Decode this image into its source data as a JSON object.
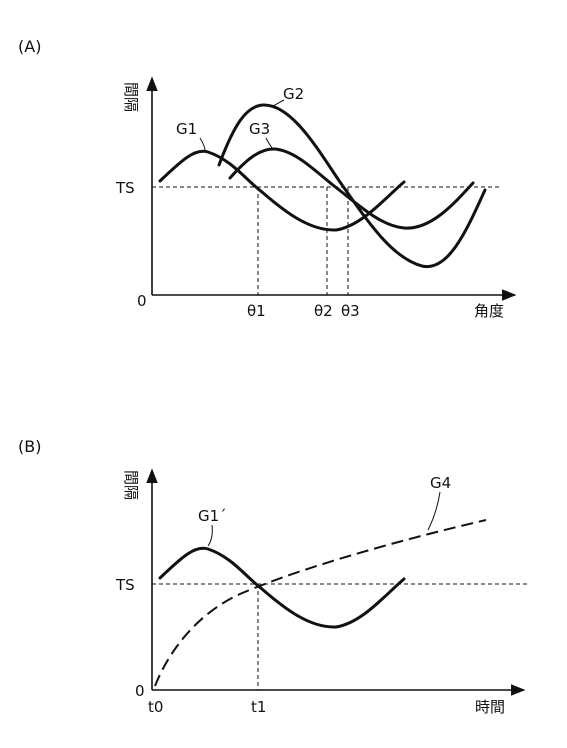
{
  "panel_a": {
    "label": "(A)",
    "y_axis_label": "間隔",
    "x_axis_label": "角度",
    "origin_label": "0",
    "threshold_label": "TS",
    "x_ticks": [
      "θ1",
      "θ2",
      "θ3"
    ],
    "curves": [
      "G1",
      "G2",
      "G3"
    ]
  },
  "panel_b": {
    "label": "(B)",
    "y_axis_label": "間隔",
    "x_axis_label": "時間",
    "origin_label": "0",
    "threshold_label": "TS",
    "x_ticks": [
      "t0",
      "t1"
    ],
    "curves": [
      "G1´",
      "G4"
    ]
  }
}
